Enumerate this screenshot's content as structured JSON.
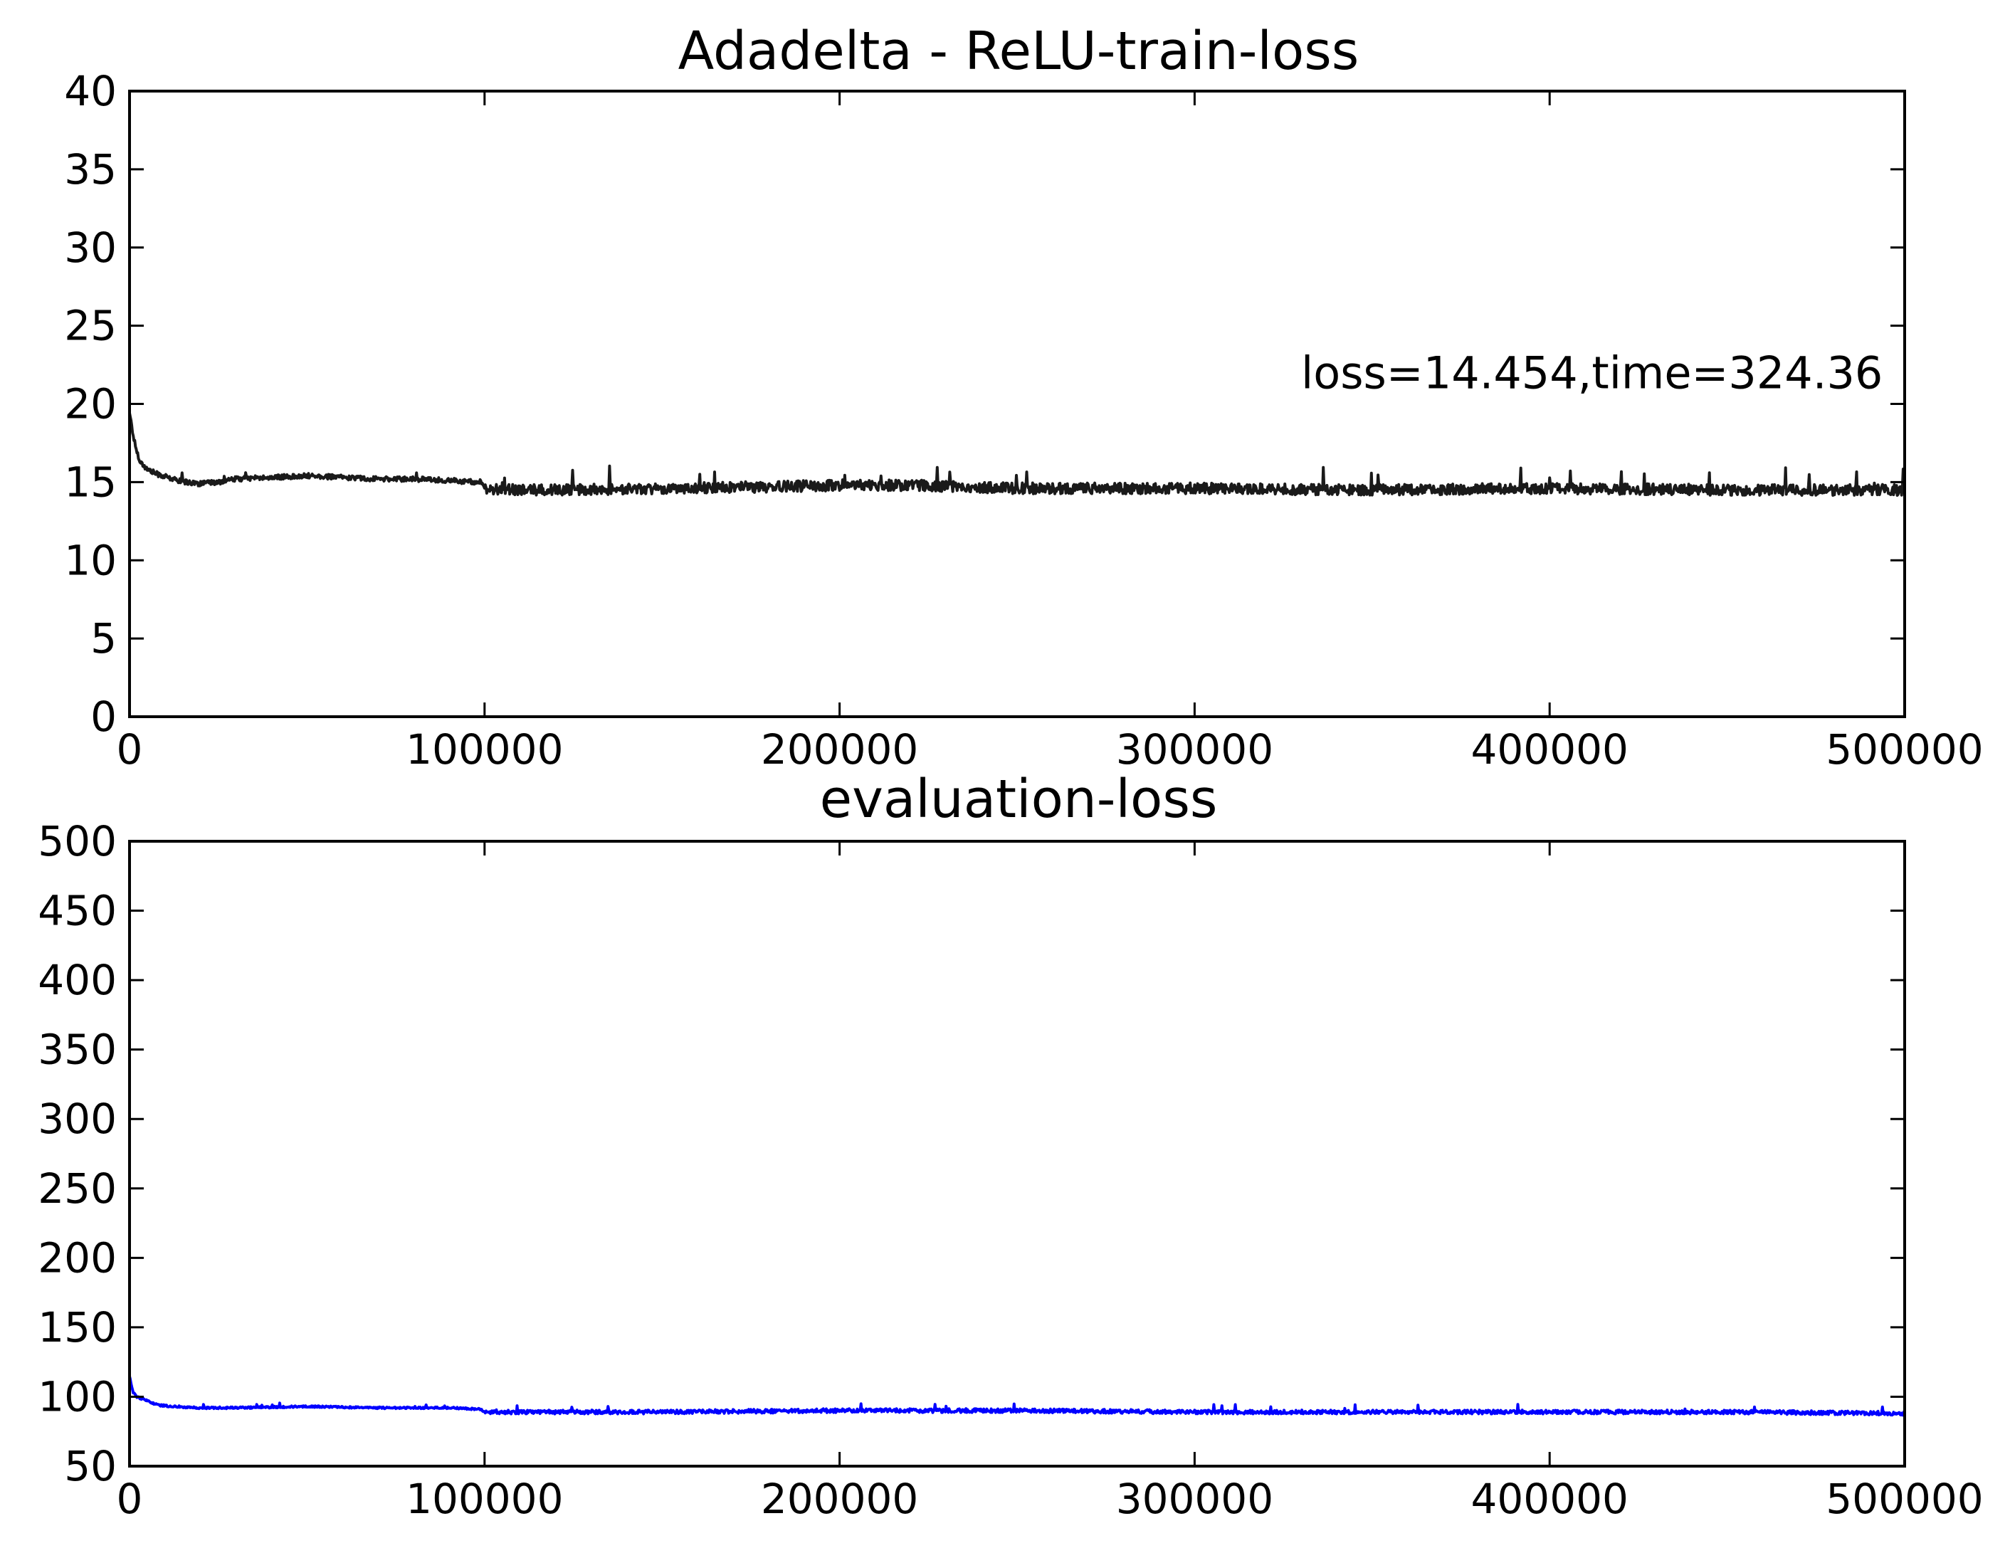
{
  "chart_data": [
    {
      "type": "line",
      "title": "Adadelta - ReLU-train-loss",
      "xlabel": "",
      "ylabel": "",
      "xlim": [
        0,
        500000
      ],
      "ylim": [
        0,
        40
      ],
      "xticks": [
        "0",
        "100000",
        "200000",
        "300000",
        "400000",
        "500000"
      ],
      "yticks": [
        "0",
        "5",
        "10",
        "15",
        "20",
        "25",
        "30",
        "35",
        "40"
      ],
      "grid": false,
      "annotation": {
        "text": "loss=14.454,time=324.36",
        "x": 330000,
        "y": 21
      },
      "series": [
        {
          "color": "#1a1a1a",
          "noise": 0.35,
          "x": [
            0,
            1000,
            2000,
            3000,
            5000,
            8000,
            12000,
            16000,
            20000,
            25000,
            30000,
            40000,
            50000,
            60000,
            70000,
            80000,
            90000,
            99000,
            100000,
            120000,
            150000,
            180000,
            200000,
            220000,
            250000,
            300000,
            350000,
            400000,
            450000,
            500000
          ],
          "values": [
            19.5,
            18.0,
            17.0,
            16.3,
            15.8,
            15.5,
            15.2,
            15.0,
            14.9,
            15.0,
            15.2,
            15.3,
            15.4,
            15.3,
            15.2,
            15.2,
            15.1,
            15.0,
            14.5,
            14.5,
            14.6,
            14.7,
            14.8,
            14.8,
            14.6,
            14.6,
            14.5,
            14.6,
            14.5,
            14.5
          ]
        }
      ]
    },
    {
      "type": "line",
      "title": "evaluation-loss",
      "xlabel": "",
      "ylabel": "",
      "xlim": [
        0,
        500000
      ],
      "ylim": [
        50,
        500
      ],
      "xticks": [
        "0",
        "100000",
        "200000",
        "300000",
        "400000",
        "500000"
      ],
      "yticks": [
        "50",
        "100",
        "150",
        "200",
        "250",
        "300",
        "350",
        "400",
        "450",
        "500"
      ],
      "grid": false,
      "series": [
        {
          "color": "#0000ff",
          "noise": 1.4,
          "x": [
            0,
            1000,
            2000,
            4000,
            8000,
            12000,
            20000,
            30000,
            50000,
            70000,
            90000,
            99000,
            100000,
            150000,
            200000,
            250000,
            300000,
            350000,
            400000,
            450000,
            500000
          ],
          "values": [
            115,
            103,
            100,
            98,
            94,
            93,
            92,
            92,
            93,
            92,
            92,
            91,
            89,
            89,
            90,
            90,
            89,
            89,
            89,
            89,
            88
          ]
        }
      ]
    }
  ]
}
